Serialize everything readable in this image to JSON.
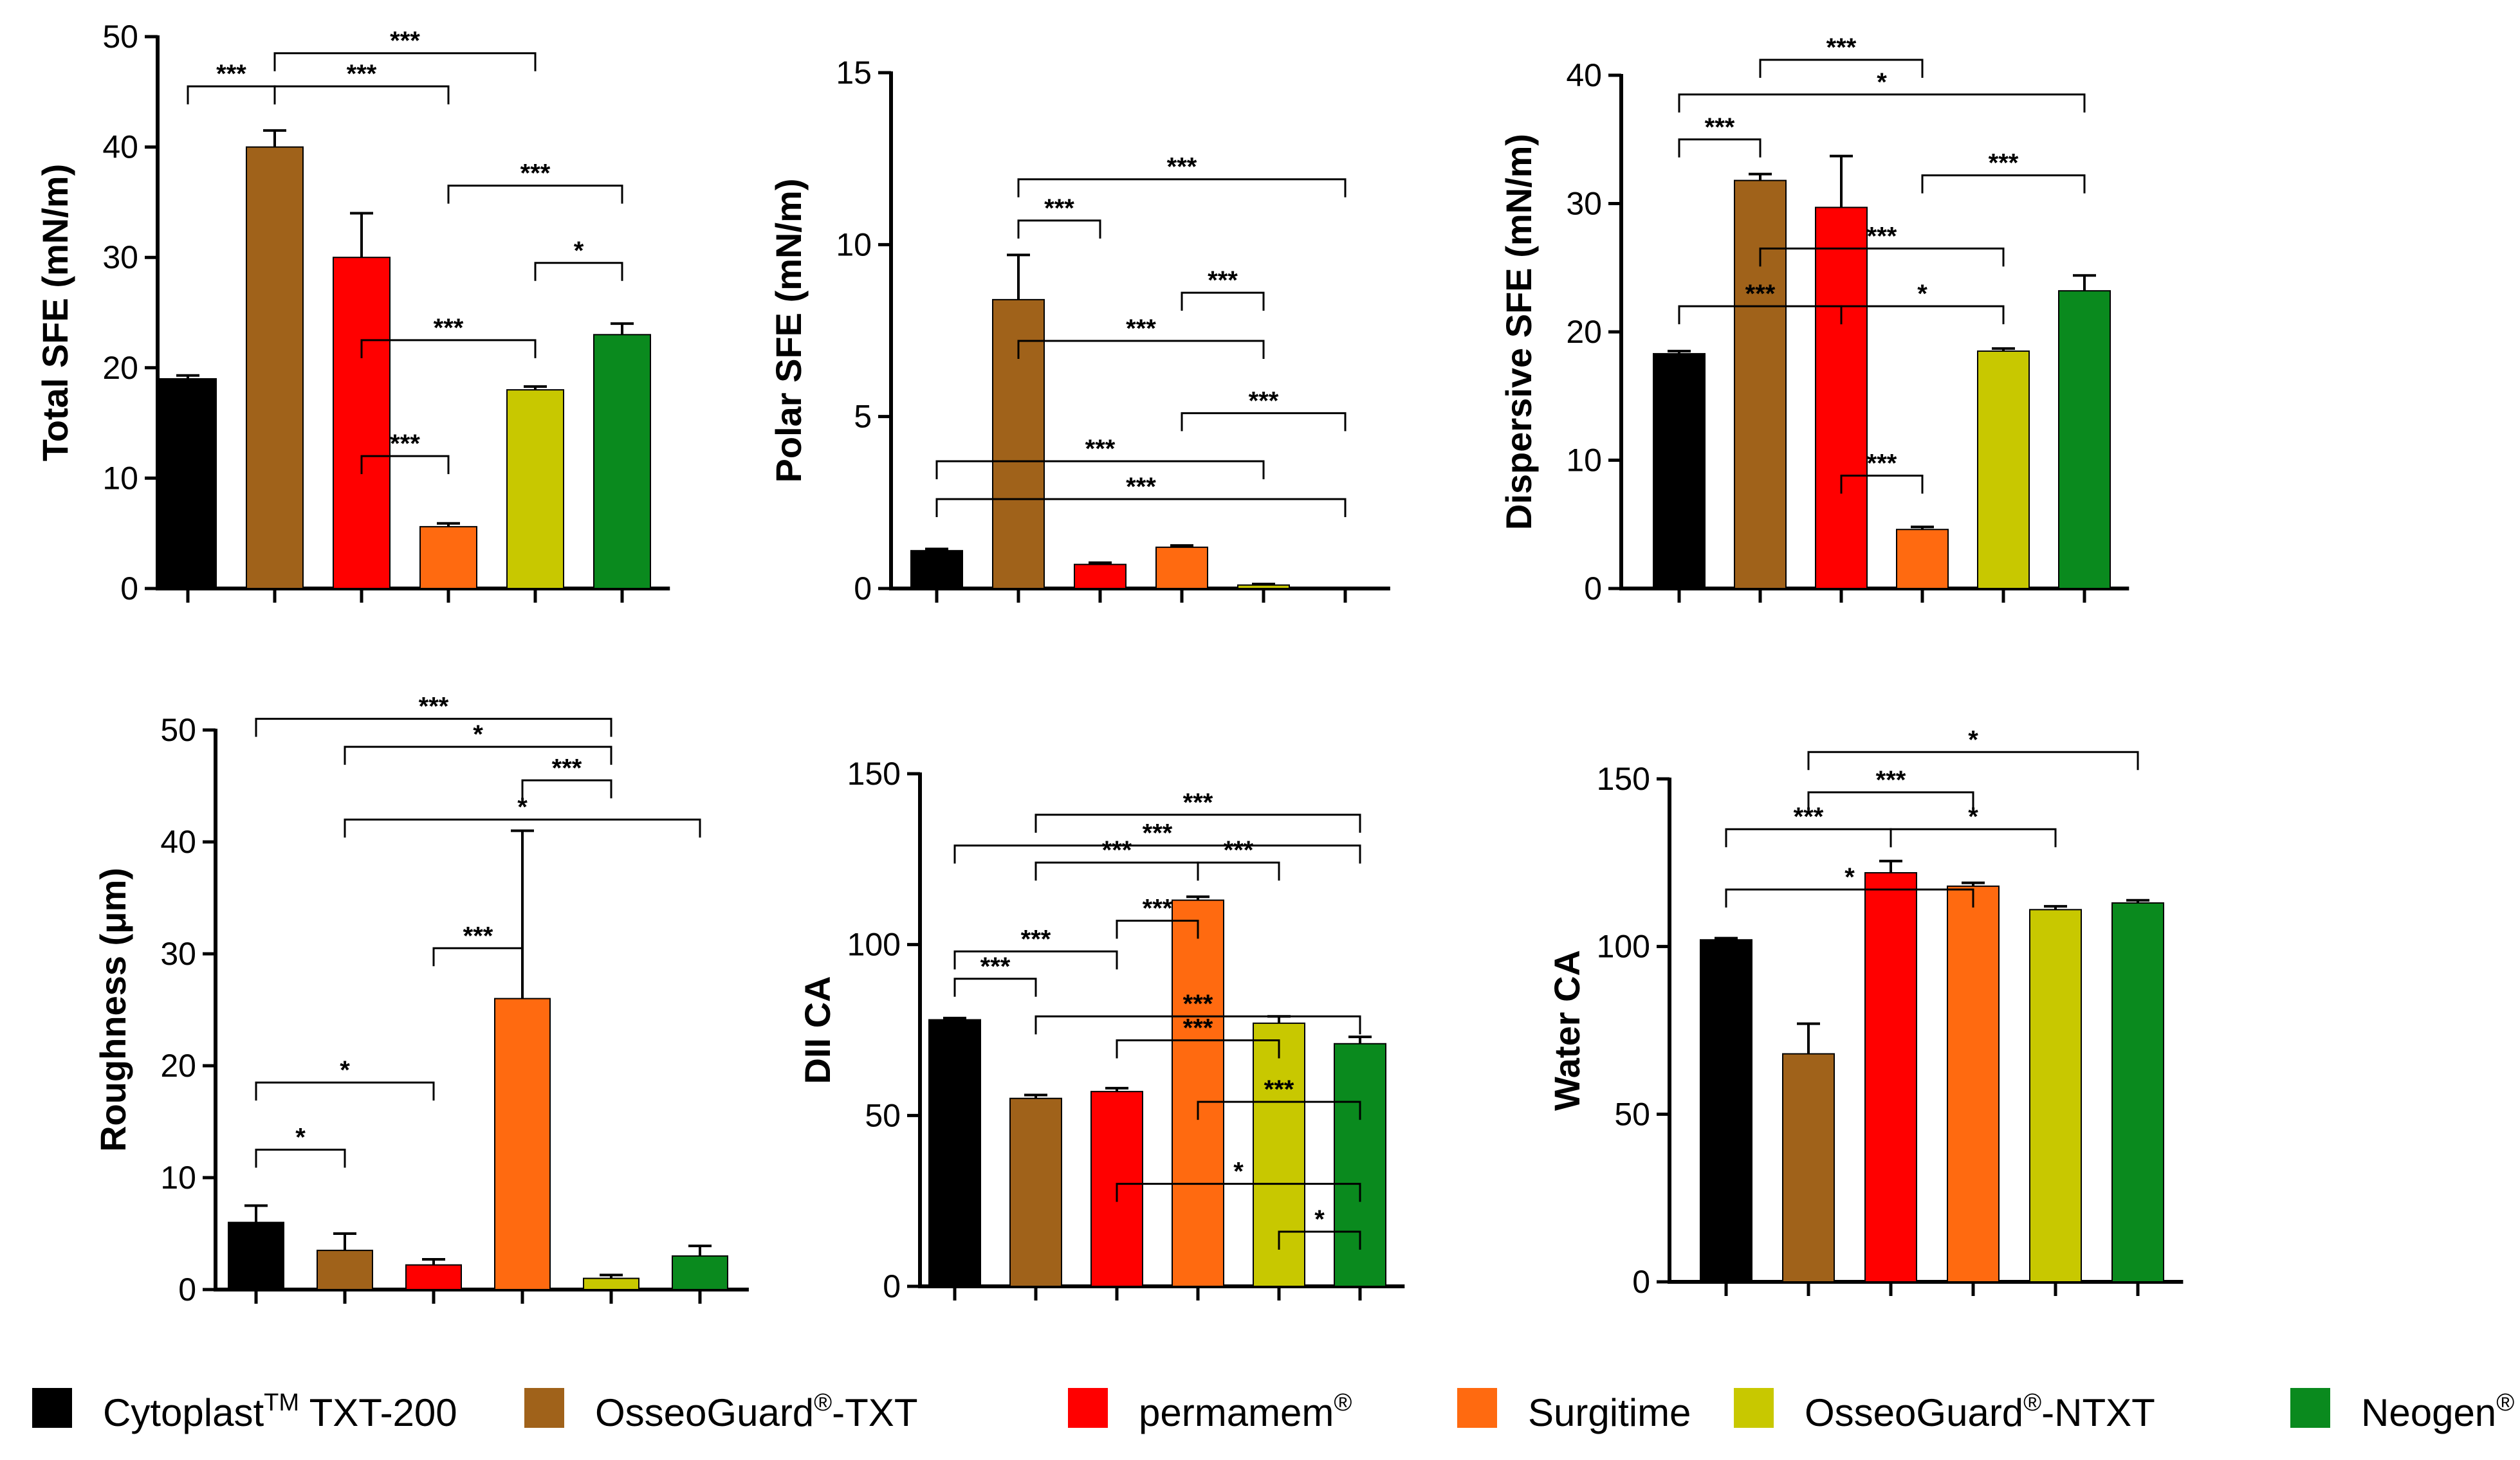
{
  "legend": [
    {
      "text": "Cytoplast",
      "sup": "TM",
      "tail": " TXT-200",
      "color": "#000000"
    },
    {
      "text": "OsseoGuard",
      "sup": "®",
      "tail": "-TXT",
      "color": "#A0621A"
    },
    {
      "text": "permamem",
      "sup": "®",
      "tail": "",
      "color": "#FF0000"
    },
    {
      "text": "Surgitime",
      "sup": "",
      "tail": "",
      "color": "#FF6A10"
    },
    {
      "text": "OsseoGuard",
      "sup": "®",
      "tail": "-NTXT",
      "color": "#C8C800"
    },
    {
      "text": "Neogen",
      "sup": "®",
      "tail": "",
      "color": "#0A8A1E"
    }
  ],
  "chart_data": [
    {
      "type": "bar",
      "ylabel": "Total  SFE  (mN/m)",
      "ylim": [
        0,
        50
      ],
      "yticks": [
        0,
        10,
        20,
        30,
        40,
        50
      ],
      "values": [
        19,
        40,
        30,
        5.6,
        18,
        23
      ],
      "errors": [
        0.3,
        1.5,
        4,
        0.3,
        0.3,
        1
      ],
      "significance": [
        {
          "from": 0,
          "to": 1,
          "level": 45.5,
          "label": "***"
        },
        {
          "from": 1,
          "to": 3,
          "level": 45.5,
          "label": "***"
        },
        {
          "from": 1,
          "to": 4,
          "level": 48.5,
          "label": "***"
        },
        {
          "from": 3,
          "to": 5,
          "level": 36.5,
          "label": "***"
        },
        {
          "from": 4,
          "to": 5,
          "level": 29.5,
          "label": "*"
        },
        {
          "from": 2,
          "to": 4,
          "level": 22.5,
          "label": "***"
        },
        {
          "from": 2,
          "to": 3,
          "level": 12,
          "label": "***"
        }
      ]
    },
    {
      "type": "bar",
      "ylabel": "Polar SFE  (mN/m)",
      "ylim": [
        0,
        15
      ],
      "yticks": [
        0,
        5,
        10,
        15
      ],
      "values": [
        1.1,
        8.4,
        0.7,
        1.2,
        0.1,
        0
      ],
      "errors": [
        0.05,
        1.3,
        0.05,
        0.05,
        0.03,
        0
      ],
      "significance": [
        {
          "from": 1,
          "to": 5,
          "level": 11.9,
          "label": "***"
        },
        {
          "from": 1,
          "to": 2,
          "level": 10.7,
          "label": "***"
        },
        {
          "from": 3,
          "to": 4,
          "level": 8.6,
          "label": "***"
        },
        {
          "from": 1,
          "to": 4,
          "level": 7.2,
          "label": "***"
        },
        {
          "from": 3,
          "to": 5,
          "level": 5.1,
          "label": "***"
        },
        {
          "from": 0,
          "to": 4,
          "level": 3.7,
          "label": "***"
        },
        {
          "from": 0,
          "to": 5,
          "level": 2.6,
          "label": "***"
        }
      ]
    },
    {
      "type": "bar",
      "ylabel": "Dispersive  SFE  (mN/m)",
      "ylim": [
        0,
        40
      ],
      "yticks": [
        0,
        10,
        20,
        30,
        40
      ],
      "values": [
        18.3,
        31.8,
        29.7,
        4.6,
        18.5,
        23.2
      ],
      "errors": [
        0.2,
        0.5,
        4,
        0.2,
        0.2,
        1.2
      ],
      "significance": [
        {
          "from": 1,
          "to": 3,
          "level": 41.2,
          "label": "***"
        },
        {
          "from": 0,
          "to": 5,
          "level": 38.5,
          "label": "*"
        },
        {
          "from": 0,
          "to": 1,
          "level": 35,
          "label": "***"
        },
        {
          "from": 3,
          "to": 5,
          "level": 32.2,
          "label": "***"
        },
        {
          "from": 1,
          "to": 4,
          "level": 26.5,
          "label": "***"
        },
        {
          "from": 0,
          "to": 2,
          "level": 22,
          "label": "***"
        },
        {
          "from": 2,
          "to": 4,
          "level": 22,
          "label": "*"
        },
        {
          "from": 2,
          "to": 3,
          "level": 8.8,
          "label": "***"
        }
      ]
    },
    {
      "type": "bar",
      "ylabel": "Roughness (μm)",
      "ylim": [
        0,
        50
      ],
      "yticks": [
        0,
        10,
        20,
        30,
        40,
        50
      ],
      "values": [
        6,
        3.5,
        2.2,
        26,
        1,
        3
      ],
      "errors": [
        1.5,
        1.5,
        0.5,
        15,
        0.3,
        0.9
      ],
      "significance": [
        {
          "from": 0,
          "to": 4,
          "level": 51,
          "label": "***"
        },
        {
          "from": 1,
          "to": 4,
          "level": 48.5,
          "label": "*"
        },
        {
          "from": 3,
          "to": 4,
          "level": 45.5,
          "label": "***"
        },
        {
          "from": 1,
          "to": 5,
          "level": 42,
          "label": "*"
        },
        {
          "from": 2,
          "to": 3,
          "level": 30.5,
          "label": "***"
        },
        {
          "from": 0,
          "to": 2,
          "level": 18.5,
          "label": "*"
        },
        {
          "from": 0,
          "to": 1,
          "level": 12.5,
          "label": "*"
        }
      ]
    },
    {
      "type": "bar",
      "ylabel": "DII CA",
      "ylim": [
        0,
        150
      ],
      "yticks": [
        0,
        50,
        100,
        150
      ],
      "values": [
        78,
        55,
        57,
        113,
        77,
        71
      ],
      "errors": [
        0.5,
        1,
        1,
        1,
        2,
        2
      ],
      "significance": [
        {
          "from": 1,
          "to": 5,
          "level": 138,
          "label": "***"
        },
        {
          "from": 0,
          "to": 5,
          "level": 129,
          "label": "***"
        },
        {
          "from": 1,
          "to": 3,
          "level": 124,
          "label": "***"
        },
        {
          "from": 3,
          "to": 4,
          "level": 124,
          "label": "***"
        },
        {
          "from": 2,
          "to": 3,
          "level": 107,
          "label": "***"
        },
        {
          "from": 0,
          "to": 2,
          "level": 98,
          "label": "***"
        },
        {
          "from": 0,
          "to": 1,
          "level": 90,
          "label": "***"
        },
        {
          "from": 1,
          "to": 5,
          "level": 79,
          "label": "***"
        },
        {
          "from": 2,
          "to": 4,
          "level": 72,
          "label": "***"
        },
        {
          "from": 3,
          "to": 5,
          "level": 54,
          "label": "***"
        },
        {
          "from": 2,
          "to": 5,
          "level": 30,
          "label": "*"
        },
        {
          "from": 4,
          "to": 5,
          "level": 16,
          "label": "*"
        }
      ]
    },
    {
      "type": "bar",
      "ylabel": "Water CA",
      "ylim": [
        0,
        150
      ],
      "yticks": [
        0,
        50,
        100,
        150
      ],
      "values": [
        102,
        68,
        122,
        118,
        111,
        113
      ],
      "errors": [
        0.5,
        9,
        3.5,
        1,
        1,
        0.8
      ],
      "significance": [
        {
          "from": 1,
          "to": 5,
          "level": 158,
          "label": "*"
        },
        {
          "from": 1,
          "to": 3,
          "level": 146,
          "label": "***"
        },
        {
          "from": 0,
          "to": 2,
          "level": 135,
          "label": "***"
        },
        {
          "from": 2,
          "to": 4,
          "level": 135,
          "label": "*"
        },
        {
          "from": 0,
          "to": 3,
          "level": 117,
          "label": "*"
        }
      ]
    }
  ]
}
